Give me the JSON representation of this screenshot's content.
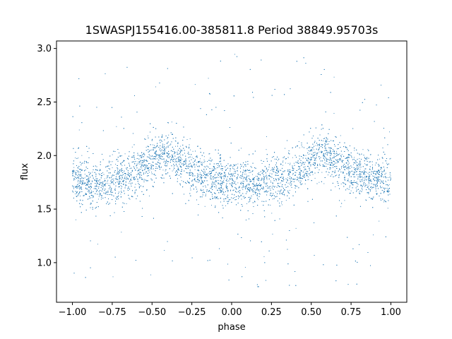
{
  "chart_data": {
    "type": "scatter",
    "title": "1SWASPJ155416.00-385811.8 Period 38849.95703s",
    "xlabel": "phase",
    "ylabel": "flux",
    "xlim": [
      -1.1,
      1.1
    ],
    "ylim": [
      0.63,
      3.07
    ],
    "xticks": [
      -1.0,
      -0.75,
      -0.5,
      -0.25,
      0.0,
      0.25,
      0.5,
      0.75,
      1.0
    ],
    "xtick_labels": [
      "−1.00",
      "−0.75",
      "−0.50",
      "−0.25",
      "0.00",
      "0.25",
      "0.50",
      "0.75",
      "1.00"
    ],
    "yticks": [
      1.0,
      1.5,
      2.0,
      2.5,
      3.0
    ],
    "ytick_labels": [
      "1.0",
      "1.5",
      "2.0",
      "2.5",
      "3.0"
    ],
    "grid": false,
    "legend": "none",
    "marker_color": "#1f77b4",
    "point_count": 9000,
    "phase_range": [
      -1.0,
      1.0
    ],
    "median_flux_profile": {
      "phase": [
        0.0,
        0.05,
        0.1,
        0.15,
        0.2,
        0.25,
        0.3,
        0.35,
        0.4,
        0.45,
        0.5,
        0.55,
        0.6,
        0.65,
        0.7,
        0.75,
        0.8,
        0.85,
        0.9,
        0.95,
        1.0
      ],
      "flux": [
        1.76,
        1.75,
        1.74,
        1.74,
        1.75,
        1.76,
        1.78,
        1.8,
        1.83,
        1.88,
        1.95,
        2.01,
        2.01,
        1.96,
        1.9,
        1.86,
        1.82,
        1.8,
        1.78,
        1.77,
        1.76
      ]
    },
    "scatter_sigma": 0.11,
    "outlier_flux_range": [
      0.75,
      2.95
    ]
  }
}
